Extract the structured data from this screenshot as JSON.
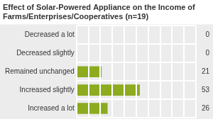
{
  "chart_data": {
    "type": "bar",
    "orientation": "horizontal",
    "title": "Effect of Solar-Powered Appliance on the Income of Farms/Enterprises/Cooperatives (n=19)",
    "categories": [
      "Decreased a lot",
      "Decreased slightly",
      "Remained unchanged",
      "Increased slightly",
      "Increased a lot"
    ],
    "values": [
      0,
      0,
      21,
      53,
      26
    ],
    "color": "#8cab1e",
    "xlim": [
      0,
      100
    ],
    "xticks": [
      0,
      10,
      20,
      30,
      40,
      50,
      60,
      70,
      80,
      90,
      100
    ],
    "grid": true,
    "tick_labels": "y",
    "data_labels": true
  }
}
